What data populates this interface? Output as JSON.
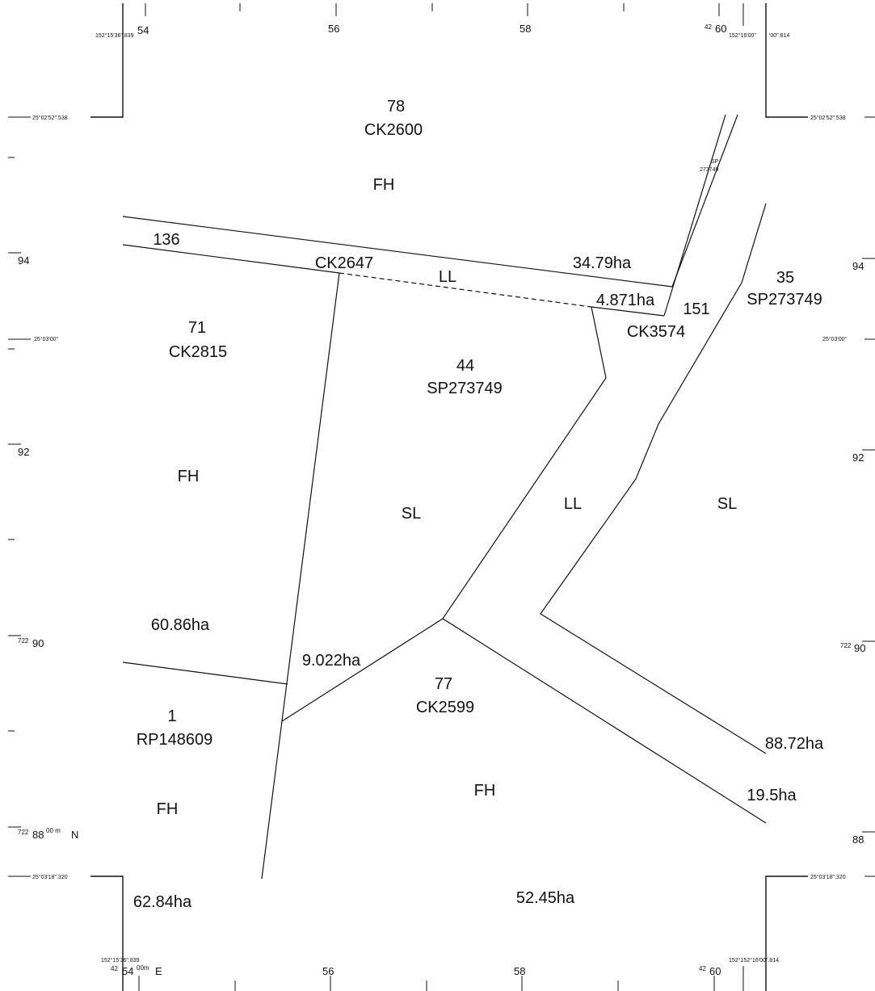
{
  "parcels": [
    {
      "lot": "78",
      "plan": "CK2600",
      "tenure": "FH"
    },
    {
      "lot": "136",
      "plan": "CK2647",
      "tenure": "LL",
      "area": "34.79ha",
      "area2": "4.871ha"
    },
    {
      "lot": "151",
      "plan": "CK3574"
    },
    {
      "lot": "35",
      "plan": "SP273749",
      "tenure": "SL",
      "area": "88.72ha"
    },
    {
      "lot": "71",
      "plan": "CK2815",
      "tenure": "FH",
      "area": "60.86ha"
    },
    {
      "lot": "44",
      "plan": "SP273749",
      "tenure": "SL",
      "area": "9.022ha"
    },
    {
      "road_tenure": "LL"
    },
    {
      "lot": "77",
      "plan": "CK2599",
      "tenure": "FH",
      "area": "52.45ha",
      "area2": "19.5ha"
    },
    {
      "lot": "1",
      "plan": "RP148609",
      "tenure": "FH",
      "area": "62.84ha"
    }
  ],
  "grid": {
    "corner_top_left_lon": "152°15'36\".839",
    "corner_top_right_lon_a": "152°16'00\"",
    "corner_top_right_lon_b": "'00\".814",
    "corner_bottom_left_lon": "152°15'36\".839",
    "corner_bottom_right_lon": "152°152°16'00\".814",
    "lat_top": "25°02'52\".538",
    "lat_mid": "25°03'00\"",
    "lat_bottom": "25°03'18\".320",
    "easting_top": [
      "54",
      "56",
      "58",
      "60"
    ],
    "easting_bottom": [
      "54",
      "56",
      "58",
      "60"
    ],
    "easting_prefix": "42",
    "easting_suffix_sup": "00m",
    "easting_unit": "E",
    "northing_left": [
      "94",
      "92",
      "90",
      "88"
    ],
    "northing_right": [
      "94",
      "92",
      "90",
      "88"
    ],
    "northing_prefix": "722",
    "northing_suffix_sup": "00 m",
    "northing_unit": "N",
    "easement_label_a": "SP",
    "easement_label_b": "273749"
  }
}
